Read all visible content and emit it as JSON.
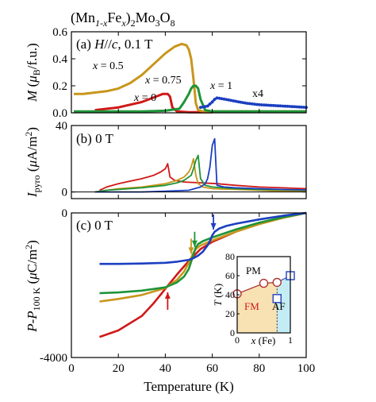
{
  "figure_title": {
    "base": "(Mn",
    "sub1": "1-x",
    "mid": "Fe",
    "sub2": "x",
    "mid2": ")",
    "sub3": "2",
    "mid3": "Mo",
    "sub4": "3",
    "mid4": "O",
    "sub5": "8"
  },
  "x_axis": {
    "label": "Temperature (K)",
    "ticks": [
      "0",
      "20",
      "40",
      "60",
      "80",
      "100"
    ],
    "range": [
      0,
      100
    ]
  },
  "colors": {
    "x0": "#d01818",
    "x05": "#c8961c",
    "x075": "#1e9438",
    "x1": "#1c3fc0"
  },
  "chart_data": [
    {
      "type": "line",
      "panel_label": "(a) H//c, 0.1 T",
      "panel_parts": {
        "pre": "(a) ",
        "field": "H",
        "mid": "//",
        "axis": "c",
        "post": ", 0.1 T"
      },
      "ylabel": {
        "sym": "M",
        "open": " (",
        "mu": "μ",
        "sub": "B",
        "close": "/f.u.)"
      },
      "yticks": [
        "0.0",
        "0.2",
        "0.4",
        "0.6"
      ],
      "ylim": [
        0,
        0.6
      ],
      "xlim": [
        0,
        100
      ],
      "annotations": [
        {
          "text_pre": "x",
          "text_post": " = 0.5",
          "series": "x05"
        },
        {
          "text_pre": "x",
          "text_post": " = 0.75",
          "series": "x075"
        },
        {
          "text_pre": "x",
          "text_post": " = 0",
          "series": "x0"
        },
        {
          "text_pre": "x",
          "text_post": " = 1",
          "series": "x1"
        },
        {
          "text_pre": "x4",
          "text_post": "",
          "series": "x1"
        }
      ],
      "series": [
        {
          "key": "x0",
          "x": [
            10,
            20,
            30,
            36,
            39,
            41,
            42,
            43,
            45,
            50,
            60
          ],
          "y": [
            0.02,
            0.04,
            0.08,
            0.12,
            0.14,
            0.14,
            0.12,
            0.04,
            0.01,
            0.005,
            0.005
          ]
        },
        {
          "key": "x05",
          "x": [
            1,
            5,
            10,
            15,
            20,
            25,
            30,
            35,
            40,
            44,
            47,
            49,
            50,
            51,
            52,
            53,
            54,
            56,
            60,
            70,
            80,
            100
          ],
          "y": [
            0.14,
            0.14,
            0.15,
            0.16,
            0.18,
            0.22,
            0.28,
            0.36,
            0.44,
            0.49,
            0.51,
            0.5,
            0.47,
            0.4,
            0.25,
            0.07,
            0.02,
            0.01,
            0.01,
            0.01,
            0.01,
            0.01
          ]
        },
        {
          "key": "x075",
          "x": [
            1,
            10,
            20,
            30,
            40,
            46,
            48,
            50,
            51,
            52,
            53,
            54,
            55,
            57,
            60,
            70,
            80,
            100
          ],
          "y": [
            0.01,
            0.01,
            0.01,
            0.01,
            0.015,
            0.03,
            0.08,
            0.14,
            0.18,
            0.2,
            0.2,
            0.18,
            0.1,
            0.02,
            0.01,
            0.01,
            0.01,
            0.01
          ]
        },
        {
          "key": "x1",
          "x": [
            55,
            58,
            60,
            61,
            62,
            64,
            67,
            70,
            75,
            80,
            85,
            90,
            95,
            100
          ],
          "y": [
            0.04,
            0.05,
            0.08,
            0.1,
            0.11,
            0.105,
            0.095,
            0.085,
            0.07,
            0.06,
            0.055,
            0.05,
            0.045,
            0.04
          ],
          "markers": true
        }
      ]
    },
    {
      "type": "line",
      "panel_label": "(b) 0 T",
      "ylabel": {
        "sym": "I",
        "sub": "pyro",
        "open": " (",
        "mu": "μ",
        "close": "A/m",
        "sup": "2",
        "end": ")"
      },
      "yticks": [
        "0",
        "40"
      ],
      "ylim": [
        -4,
        40
      ],
      "xlim": [
        0,
        100
      ],
      "series": [
        {
          "key": "x0",
          "x": [
            12,
            15,
            20,
            25,
            30,
            35,
            38,
            40,
            41,
            42,
            44,
            48,
            55,
            62,
            70,
            80,
            90,
            100
          ],
          "y": [
            1,
            3,
            5,
            6.5,
            8,
            10,
            12,
            14,
            17,
            9,
            7,
            6,
            5.5,
            5,
            4,
            3,
            2.5,
            2
          ]
        },
        {
          "key": "x05",
          "x": [
            10,
            15,
            20,
            30,
            40,
            45,
            48,
            50,
            51,
            52,
            53,
            54,
            56,
            60,
            70,
            80,
            90,
            100
          ],
          "y": [
            0,
            1,
            2,
            3,
            5,
            7,
            9,
            12,
            15,
            20,
            10,
            5,
            3,
            2,
            1.5,
            1,
            0.5,
            0.3
          ]
        },
        {
          "key": "x075",
          "x": [
            10,
            15,
            20,
            30,
            40,
            45,
            48,
            50,
            51,
            52,
            53,
            54,
            55,
            57,
            60,
            70,
            80,
            100
          ],
          "y": [
            0,
            1,
            1.5,
            2.5,
            4,
            5.5,
            7,
            9,
            10,
            14,
            19,
            22,
            8,
            4,
            3,
            2,
            1.5,
            1
          ]
        },
        {
          "key": "x1",
          "x": [
            10,
            20,
            30,
            40,
            50,
            55,
            57,
            58,
            59,
            60,
            61,
            62,
            65,
            70,
            80,
            90,
            100
          ],
          "y": [
            0,
            0,
            0,
            0.5,
            1,
            3,
            5,
            8,
            15,
            28,
            32,
            4,
            3,
            2.5,
            2,
            1.5,
            1.2
          ]
        }
      ]
    },
    {
      "type": "line",
      "panel_label": "(c) 0 T",
      "ylabel": {
        "sym": "P",
        "dash": "-",
        "sym2": "P",
        "sub": "100 K",
        "open": " (",
        "mu": "μ",
        "close": "C/m",
        "sup": "2",
        "end": ")"
      },
      "yticks": [
        "0",
        "-4000"
      ],
      "ylim": [
        -4000,
        0
      ],
      "xlim": [
        0,
        100
      ],
      "arrows": [
        {
          "series": "x0",
          "x": 41
        },
        {
          "series": "x05",
          "x": 51
        },
        {
          "series": "x075",
          "x": 52.5
        },
        {
          "series": "x1",
          "x": 60.5
        }
      ],
      "series": [
        {
          "key": "x0",
          "x": [
            12,
            20,
            30,
            35,
            40,
            45,
            50,
            55,
            60,
            70,
            80,
            90,
            100
          ],
          "y": [
            -3430,
            -3250,
            -2850,
            -2500,
            -2100,
            -1700,
            -1330,
            -1000,
            -800,
            -520,
            -300,
            -130,
            0
          ]
        },
        {
          "key": "x05",
          "x": [
            12,
            20,
            30,
            40,
            45,
            48,
            50,
            51,
            52,
            53,
            55,
            60,
            70,
            80,
            90,
            100
          ],
          "y": [
            -2450,
            -2380,
            -2270,
            -2080,
            -1850,
            -1620,
            -1380,
            -1240,
            -1100,
            -1000,
            -900,
            -760,
            -520,
            -310,
            -140,
            0
          ]
        },
        {
          "key": "x075",
          "x": [
            12,
            20,
            30,
            40,
            45,
            48,
            50,
            51,
            52,
            53,
            54,
            56,
            60,
            70,
            80,
            90,
            100
          ],
          "y": [
            -2220,
            -2200,
            -2150,
            -2060,
            -1920,
            -1760,
            -1550,
            -1350,
            -1150,
            -950,
            -860,
            -780,
            -680,
            -460,
            -270,
            -120,
            0
          ]
        },
        {
          "key": "x1",
          "x": [
            12,
            20,
            30,
            40,
            45,
            50,
            52,
            54,
            56,
            58,
            59,
            60,
            61,
            63,
            66,
            70,
            80,
            90,
            100
          ],
          "y": [
            -1410,
            -1410,
            -1400,
            -1380,
            -1350,
            -1300,
            -1250,
            -1180,
            -1070,
            -900,
            -780,
            -620,
            -520,
            -430,
            -360,
            -300,
            -180,
            -80,
            0
          ]
        }
      ],
      "inset": {
        "xlabel": {
          "sym": "x",
          "post": " (Fe)"
        },
        "ylabel": {
          "sym": "T",
          "post": " (K)"
        },
        "xticks": [
          "0",
          "1"
        ],
        "yticks": [
          "0",
          "20",
          "40",
          "60",
          "80"
        ],
        "xlim": [
          0,
          1
        ],
        "ylim": [
          0,
          80
        ],
        "regions": [
          {
            "label": "PM"
          },
          {
            "label": "FM",
            "color": "#f8e2b4"
          },
          {
            "label": "AF",
            "color": "#c4ecf4"
          }
        ],
        "circles": {
          "x": [
            0,
            0.5,
            0.75
          ],
          "y": [
            41,
            52,
            53
          ]
        },
        "squares": {
          "x": [
            0.75,
            1
          ],
          "y": [
            36,
            60
          ]
        }
      }
    }
  ]
}
